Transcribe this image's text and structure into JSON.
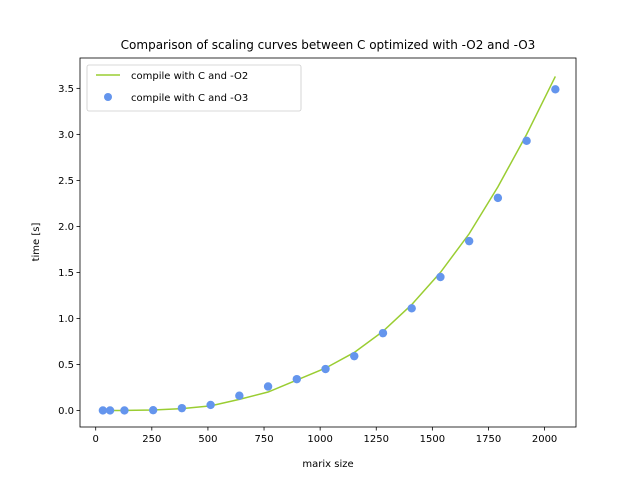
{
  "chart_data": {
    "type": "line",
    "title": "Comparison of scaling curves between C optimized with -O2 and -O3",
    "xlabel": "marix size",
    "ylabel": "time [s]",
    "xlim": [
      -70,
      2140
    ],
    "ylim": [
      -0.18,
      3.83
    ],
    "xticks": [
      0,
      250,
      500,
      750,
      1000,
      1250,
      1500,
      1750,
      2000
    ],
    "yticks": [
      0.0,
      0.5,
      1.0,
      1.5,
      2.0,
      2.5,
      3.0,
      3.5
    ],
    "xtick_labels": [
      "0",
      "250",
      "500",
      "750",
      "1000",
      "1250",
      "1500",
      "1750",
      "2000"
    ],
    "ytick_labels": [
      "0.0",
      "0.5",
      "1.0",
      "1.5",
      "2.0",
      "2.5",
      "3.0",
      "3.5"
    ],
    "grid": false,
    "legend_position": "upper-left",
    "series": [
      {
        "name": "compile with C and -O2",
        "kind": "line",
        "color": "#9acd32",
        "x": [
          32,
          64,
          128,
          256,
          384,
          512,
          640,
          768,
          896,
          1024,
          1152,
          1280,
          1408,
          1536,
          1664,
          1792,
          1920,
          2048
        ],
        "y": [
          0.0,
          0.0,
          0.0,
          0.005,
          0.02,
          0.05,
          0.12,
          0.2,
          0.33,
          0.46,
          0.63,
          0.86,
          1.15,
          1.5,
          1.92,
          2.43,
          3.0,
          3.63
        ]
      },
      {
        "name": "compile with C and -O3",
        "kind": "scatter",
        "color": "#6495ed",
        "x": [
          32,
          64,
          128,
          256,
          384,
          512,
          640,
          768,
          896,
          1024,
          1152,
          1280,
          1408,
          1536,
          1664,
          1792,
          1920,
          2048
        ],
        "y": [
          0.0,
          0.0,
          0.0,
          0.003,
          0.025,
          0.06,
          0.16,
          0.26,
          0.34,
          0.45,
          0.59,
          0.84,
          1.11,
          1.45,
          1.84,
          2.31,
          2.93,
          3.49
        ]
      }
    ]
  }
}
